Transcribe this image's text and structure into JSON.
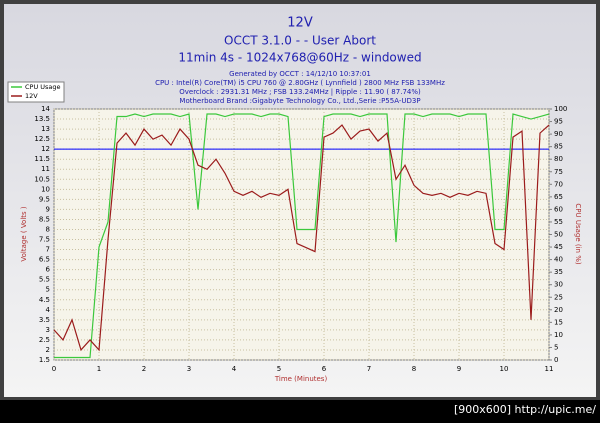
{
  "chart_data": {
    "type": "line",
    "title": "12V",
    "title_lines": [
      "OCCT 3.1.0 -  - User Abort",
      "11min 4s - 1024x768@60Hz - windowed"
    ],
    "subtitle_lines": [
      "Generated by OCCT : 14/12/10 10:37:01",
      "CPU : Intel(R) Core(TM) i5 CPU 760 @ 2.80GHz ( Lynnfield ) 2800 MHz FSB 133MHz",
      "Overclock : 2931.31 MHz ; FSB 133.24MHz | Ripple : 11.90 ( 87.74%)",
      "Motherboard Brand :Gigabyte Technology Co., Ltd.,Serie :P55A-UD3P"
    ],
    "xlabel": "Time (Minutes)",
    "ylabel": "Voltage ( Volts )",
    "y2label": "CPU Usage (in %)",
    "watermark": "[900x600] http://upic.me/",
    "x": [
      0,
      0.2,
      0.4,
      0.6,
      0.8,
      1,
      1.2,
      1.4,
      1.6,
      1.8,
      2,
      2.2,
      2.4,
      2.6,
      2.8,
      3,
      3.2,
      3.4,
      3.6,
      3.8,
      4,
      4.2,
      4.4,
      4.6,
      4.8,
      5,
      5.2,
      5.4,
      5.6,
      5.8,
      6,
      6.2,
      6.4,
      6.6,
      6.8,
      7,
      7.2,
      7.4,
      7.6,
      7.8,
      8,
      8.2,
      8.4,
      8.6,
      8.8,
      9,
      9.2,
      9.4,
      9.6,
      9.8,
      10,
      10.2,
      10.4,
      10.6,
      10.8,
      11
    ],
    "series": [
      {
        "name": "CPU Usage",
        "color": "#3cc83c",
        "axis": "y2",
        "values": [
          1,
          1,
          1,
          1,
          1,
          45,
          55,
          97,
          97,
          98,
          97,
          98,
          98,
          98,
          97,
          98,
          60,
          98,
          98,
          97,
          98,
          98,
          98,
          97,
          98,
          98,
          97,
          52,
          52,
          52,
          97,
          98,
          98,
          98,
          97,
          98,
          98,
          98,
          47,
          98,
          98,
          97,
          98,
          98,
          98,
          97,
          98,
          98,
          98,
          52,
          52,
          98,
          97,
          96,
          97,
          98
        ]
      },
      {
        "name": "12V",
        "color": "#9b1c1c",
        "values": [
          3,
          2.5,
          3.5,
          2,
          2.5,
          2,
          7.5,
          12.3,
          12.8,
          12.2,
          13,
          12.5,
          12.7,
          12.2,
          13,
          12.5,
          11.2,
          11,
          11.5,
          10.8,
          9.9,
          9.7,
          9.9,
          9.6,
          9.8,
          9.7,
          10,
          7.3,
          7.1,
          6.9,
          12.6,
          12.8,
          13.2,
          12.5,
          12.9,
          13,
          12.4,
          12.8,
          10.5,
          11.2,
          10.2,
          9.8,
          9.7,
          9.8,
          9.6,
          9.8,
          9.7,
          9.9,
          9.8,
          7.3,
          7,
          12.6,
          12.9,
          3.5,
          12.8,
          13.2
        ]
      }
    ],
    "hline": {
      "value": 12,
      "color": "#0000ff"
    },
    "xlim": [
      0,
      11
    ],
    "xticks": [
      0,
      1,
      2,
      3,
      4,
      5,
      6,
      7,
      8,
      9,
      10,
      11
    ],
    "ylim": [
      1.5,
      14
    ],
    "yticks": [
      1.5,
      2,
      2.5,
      3,
      3.5,
      4,
      4.5,
      5,
      5.5,
      6,
      6.5,
      7,
      7.5,
      8,
      8.5,
      9,
      9.5,
      10,
      10.5,
      11,
      11.5,
      12,
      12.5,
      13,
      13.5,
      14
    ],
    "y2lim": [
      0,
      100
    ],
    "y2ticks": [
      0,
      5,
      10,
      15,
      20,
      25,
      30,
      35,
      40,
      45,
      50,
      55,
      60,
      65,
      70,
      75,
      80,
      85,
      90,
      95,
      100
    ],
    "grid": true,
    "legend": "top-left"
  }
}
